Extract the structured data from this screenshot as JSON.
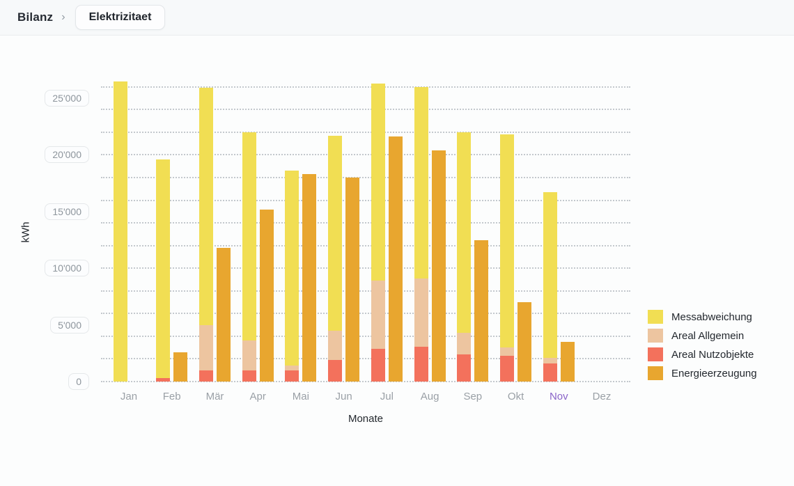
{
  "breadcrumb": {
    "root": "Bilanz",
    "separator": "›",
    "current": "Elektrizitaet"
  },
  "chart_data": {
    "type": "bar",
    "title": "",
    "xlabel": "Monate",
    "ylabel": "kWh",
    "categories": [
      "Jan",
      "Feb",
      "Mär",
      "Apr",
      "Mai",
      "Jun",
      "Jul",
      "Aug",
      "Sep",
      "Okt",
      "Nov",
      "Dez"
    ],
    "highlighted_category": "Nov",
    "series": [
      {
        "name": "Areal Nutzobjekte",
        "stack": "verbrauch",
        "color": "#f3715c",
        "values": [
          0,
          300,
          1000,
          1000,
          1000,
          1900,
          2900,
          3100,
          2400,
          2300,
          1600,
          0
        ]
      },
      {
        "name": "Areal Allgemein",
        "stack": "verbrauch",
        "color": "#edc5a0",
        "values": [
          0,
          0,
          4000,
          2600,
          400,
          2600,
          6000,
          6000,
          1900,
          700,
          500,
          0
        ]
      },
      {
        "name": "Messabweichung",
        "stack": "verbrauch",
        "color": "#f1de53",
        "values": [
          26500,
          19300,
          20900,
          18400,
          17200,
          17200,
          17400,
          16900,
          17700,
          18800,
          14600,
          0
        ]
      },
      {
        "name": "Energieerzeugung",
        "stack": "erzeugung",
        "color": "#e8a62f",
        "values": [
          0,
          2600,
          11800,
          15200,
          18300,
          18000,
          21600,
          20400,
          12500,
          7000,
          3500,
          0
        ]
      }
    ],
    "stack_totals_kwh": [
      26500,
      19600,
      25900,
      22000,
      18600,
      21700,
      26300,
      26000,
      22000,
      21800,
      16700,
      0
    ],
    "ylim": [
      0,
      26500
    ],
    "gridline_step": 2000,
    "gridline_max": 26000,
    "grid_style": "dotted",
    "ytick_values": [
      0,
      5000,
      10000,
      15000,
      20000,
      25000
    ],
    "ytick_labels": [
      "0",
      "5'000",
      "10'000",
      "15'000",
      "20'000",
      "25'000"
    ],
    "legend_position": "right",
    "legend_order": [
      "Messabweichung",
      "Areal Allgemein",
      "Areal Nutzobjekte",
      "Energieerzeugung"
    ]
  },
  "colors": {
    "messabweichung": "#f1de53",
    "areal_allgemein": "#edc5a0",
    "areal_nutzobjekte": "#f3715c",
    "energieerzeugung": "#e8a62f",
    "highlighted_month": "#8a64c8",
    "gridline": "#c3c8cd"
  }
}
